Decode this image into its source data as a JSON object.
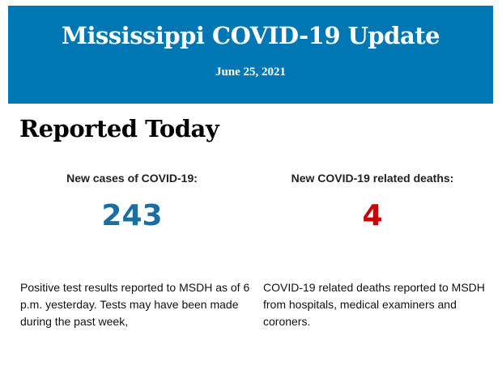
{
  "header": {
    "title": "Mississippi COVID-19 Update",
    "date": "June 25, 2021",
    "background_color": "#0077b3"
  },
  "section": {
    "title": "Reported Today"
  },
  "cases": {
    "label": "New cases of COVID-19:",
    "value": "243",
    "color": "#1a6ea0",
    "description": "Positive test results reported to MSDH as of 6 p.m. yesterday. Tests may have been made during the past week,"
  },
  "deaths": {
    "label": "New COVID-19 related deaths:",
    "value": "4",
    "color": "#cc0000",
    "description": "COVID-19 related deaths reported to MSDH from hospitals, medical examiners and coroners."
  }
}
